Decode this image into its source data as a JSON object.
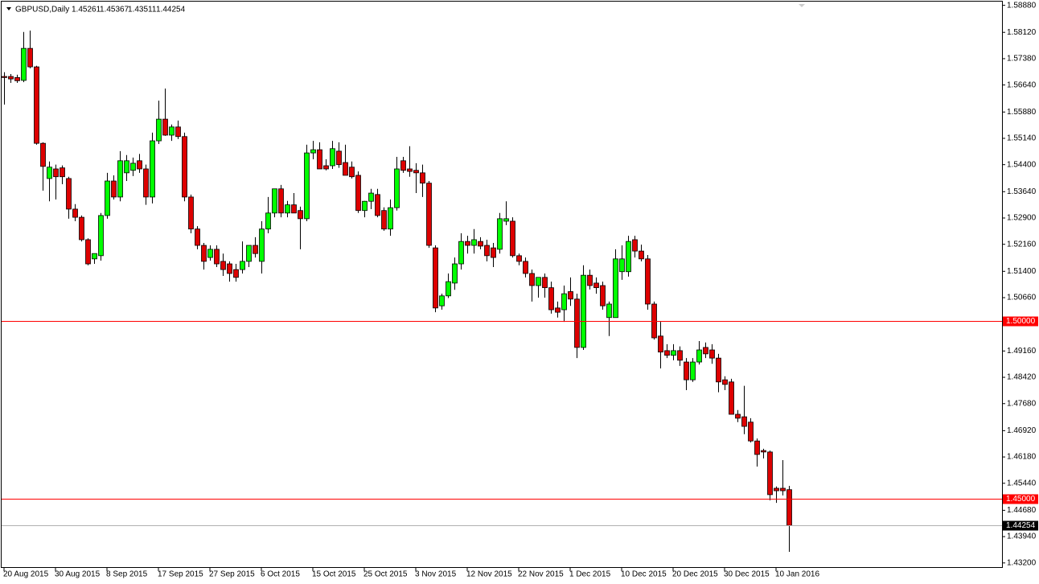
{
  "chart_data": {
    "type": "candlestick",
    "title": "GBPUSD,Daily",
    "categories": [
      "20 Aug 2015",
      null,
      null,
      null,
      null,
      null,
      null,
      null,
      "30 Aug 2015",
      null,
      null,
      null,
      null,
      null,
      null,
      null,
      "8 Sep 2015",
      null,
      null,
      null,
      null,
      null,
      null,
      null,
      "17 Sep 2015",
      null,
      null,
      null,
      null,
      null,
      null,
      null,
      "27 Sep 2015",
      null,
      null,
      null,
      null,
      null,
      null,
      null,
      "6 Oct 2015",
      null,
      null,
      null,
      null,
      null,
      null,
      null,
      "15 Oct 2015",
      null,
      null,
      null,
      null,
      null,
      null,
      null,
      "25 Oct 2015",
      null,
      null,
      null,
      null,
      null,
      null,
      null,
      "3 Nov 2015",
      null,
      null,
      null,
      null,
      null,
      null,
      null,
      "12 Nov 2015",
      null,
      null,
      null,
      null,
      null,
      null,
      null,
      "22 Nov 2015",
      null,
      null,
      null,
      null,
      null,
      null,
      null,
      "1 Dec 2015",
      null,
      null,
      null,
      null,
      null,
      null,
      null,
      "10 Dec 2015",
      null,
      null,
      null,
      null,
      null,
      null,
      null,
      "20 Dec 2015",
      null,
      null,
      null,
      null,
      null,
      null,
      null,
      "30 Dec 2015",
      null,
      null,
      null,
      null,
      null,
      null,
      null,
      "10 Jan 2016",
      null,
      null
    ],
    "open": [
      1.5688,
      1.5688,
      1.5685,
      1.5677,
      1.5767,
      1.5715,
      1.55,
      1.5401,
      1.5428,
      1.5431,
      1.5401,
      1.5315,
      1.5292,
      1.5229,
      1.5175,
      1.5184,
      1.5297,
      1.5394,
      1.5349,
      1.5417,
      1.5424,
      1.5451,
      1.5428,
      1.5349,
      1.5507,
      1.5568,
      1.5523,
      1.5546,
      1.5519,
      1.5349,
      1.5259,
      1.5213,
      1.5179,
      1.5202,
      1.5168,
      1.5161,
      1.5145,
      1.5145,
      1.5168,
      1.5213,
      1.5168,
      1.5259,
      1.5304,
      1.5372,
      1.5304,
      1.5327,
      1.5311,
      1.5288,
      1.5473,
      1.5482,
      1.5437,
      1.5437,
      1.5478,
      1.5446,
      1.5433,
      1.541,
      1.5311,
      1.5337,
      1.5356,
      1.5311,
      1.5259,
      1.5319,
      1.5451,
      1.5428,
      1.5424,
      1.5417,
      1.5388,
      1.5206,
      1.5043,
      1.5071,
      1.5107,
      1.5161,
      1.5224,
      1.5213,
      1.5224,
      1.5213,
      1.5206,
      1.5202,
      1.5281,
      1.5281,
      1.5184,
      1.5168,
      1.5134,
      1.51,
      1.5123,
      1.5094,
      1.5037,
      1.5032,
      1.5083,
      1.5062,
      1.4926,
      1.5129,
      1.5107,
      1.51,
      1.501,
      1.501,
      1.5139,
      1.5139,
      1.5229,
      1.5197,
      1.5175,
      1.5048,
      1.4958,
      1.4917,
      1.4904,
      1.4917,
      1.4885,
      1.4835,
      1.4885,
      1.4926,
      1.4919,
      1.4896,
      1.4835,
      1.4829,
      1.4738,
      1.4731,
      1.4716,
      1.4663,
      1.4636,
      1.4632,
      1.453,
      1.453,
      1.45261
    ],
    "high": [
      1.57,
      1.5695,
      1.5693,
      1.5813,
      1.5817,
      1.5718,
      1.5503,
      1.5449,
      1.544,
      1.5438,
      1.5406,
      1.5329,
      1.5297,
      1.5233,
      1.5186,
      1.5304,
      1.5417,
      1.541,
      1.5478,
      1.5467,
      1.546,
      1.547,
      1.544,
      1.553,
      1.562,
      1.5654,
      1.5553,
      1.5564,
      1.553,
      1.5356,
      1.5267,
      1.522,
      1.5213,
      1.5213,
      1.519,
      1.5168,
      1.5161,
      1.5224,
      1.5213,
      1.5236,
      1.5281,
      1.5349,
      1.5372,
      1.5383,
      1.5338,
      1.536,
      1.5322,
      1.5496,
      1.5507,
      1.5503,
      1.5455,
      1.5507,
      1.5503,
      1.5496,
      1.5449,
      1.5421,
      1.5338,
      1.5372,
      1.5372,
      1.532,
      1.5342,
      1.5462,
      1.5462,
      1.5492,
      1.5444,
      1.544,
      1.5394,
      1.5213,
      1.5077,
      1.5134,
      1.5179,
      1.5247,
      1.524,
      1.5259,
      1.5236,
      1.5229,
      1.522,
      1.5304,
      1.5337,
      1.5292,
      1.519,
      1.5179,
      1.5145,
      1.5123,
      1.5134,
      1.5111,
      1.5055,
      1.51,
      1.5123,
      1.5077,
      1.5157,
      1.5145,
      1.5123,
      1.5111,
      1.5055,
      1.5202,
      1.5213,
      1.524,
      1.524,
      1.5215,
      1.5186,
      1.5055,
      1.4998,
      1.4935,
      1.4935,
      1.4929,
      1.4896,
      1.4896,
      1.4944,
      1.494,
      1.4935,
      1.4908,
      1.4845,
      1.4838,
      1.475,
      1.4818,
      1.4727,
      1.467,
      1.4641,
      1.4636,
      1.4535,
      1.4609,
      1.45367
    ],
    "low": [
      1.5609,
      1.567,
      1.567,
      1.5672,
      1.5711,
      1.5496,
      1.5367,
      1.5337,
      1.5342,
      1.5385,
      1.5288,
      1.5281,
      1.5224,
      1.5157,
      1.5161,
      1.517,
      1.5288,
      1.5342,
      1.5337,
      1.5394,
      1.5408,
      1.5417,
      1.5327,
      1.5331,
      1.5498,
      1.5521,
      1.5507,
      1.5512,
      1.5337,
      1.5247,
      1.5202,
      1.5145,
      1.517,
      1.5152,
      1.5127,
      1.5111,
      1.5111,
      1.5134,
      1.5152,
      1.5179,
      1.5134,
      1.5247,
      1.5292,
      1.5292,
      1.5292,
      1.5304,
      1.5202,
      1.5281,
      1.5455,
      1.5428,
      1.5424,
      1.5428,
      1.5431,
      1.541,
      1.5401,
      1.5304,
      1.5292,
      1.5315,
      1.5292,
      1.5254,
      1.524,
      1.5311,
      1.5417,
      1.5406,
      1.536,
      1.5349,
      1.5206,
      1.5025,
      1.5032,
      1.5065,
      1.5088,
      1.5145,
      1.519,
      1.519,
      1.5202,
      1.5168,
      1.5152,
      1.519,
      1.527,
      1.5179,
      1.5157,
      1.5123,
      1.5055,
      1.5066,
      1.5066,
      1.5021,
      1.501,
      1.4998,
      1.5043,
      1.4896,
      1.4919,
      1.5089,
      1.5077,
      1.5032,
      1.4958,
      1.501,
      1.5116,
      1.5125,
      1.5179,
      1.5168,
      1.5032,
      1.4948,
      1.4867,
      1.4896,
      1.489,
      1.4874,
      1.4806,
      1.4829,
      1.4878,
      1.4896,
      1.488,
      1.48,
      1.4806,
      1.4738,
      1.4716,
      1.4682,
      1.4659,
      1.4591,
      1.4614,
      1.4496,
      1.4489,
      1.451,
      1.43511
    ],
    "close": [
      1.5685,
      1.5681,
      1.5676,
      1.5767,
      1.5715,
      1.55,
      1.5435,
      1.5433,
      1.5406,
      1.5406,
      1.5315,
      1.5292,
      1.5229,
      1.5161,
      1.519,
      1.5297,
      1.5394,
      1.5349,
      1.5451,
      1.5451,
      1.5444,
      1.5428,
      1.5349,
      1.5507,
      1.5568,
      1.5523,
      1.5546,
      1.5519,
      1.5349,
      1.5259,
      1.5213,
      1.5168,
      1.5202,
      1.5161,
      1.5145,
      1.5134,
      1.5123,
      1.5168,
      1.5213,
      1.519,
      1.5259,
      1.5304,
      1.5372,
      1.5304,
      1.5327,
      1.5304,
      1.5288,
      1.5473,
      1.5482,
      1.5428,
      1.5428,
      1.5485,
      1.544,
      1.541,
      1.5406,
      1.5311,
      1.5337,
      1.536,
      1.5297,
      1.5259,
      1.5319,
      1.5428,
      1.5424,
      1.5421,
      1.5417,
      1.5388,
      1.5213,
      1.5037,
      1.5071,
      1.5111,
      1.5161,
      1.5224,
      1.5213,
      1.5229,
      1.5211,
      1.5184,
      1.5179,
      1.5288,
      1.5288,
      1.5184,
      1.5168,
      1.5134,
      1.51,
      1.5123,
      1.5094,
      1.5032,
      1.5025,
      1.5077,
      1.5062,
      1.4926,
      1.5129,
      1.51,
      1.5094,
      1.5043,
      1.5048,
      1.5175,
      1.5175,
      1.5224,
      1.5197,
      1.5175,
      1.5048,
      1.4953,
      1.4913,
      1.4904,
      1.4917,
      1.489,
      1.4835,
      1.4885,
      1.4919,
      1.4908,
      1.4896,
      1.4829,
      1.4822,
      1.4738,
      1.4727,
      1.4704,
      1.4663,
      1.4625,
      1.4632,
      1.4512,
      1.4523,
      1.4523,
      1.44254
    ],
    "up_color": "#00ff00",
    "down_color": "#dd0000",
    "ylim": [
      1.4306,
      1.5903
    ],
    "yticks": [
      {
        "value": 1.5888,
        "label": "1.58880"
      },
      {
        "value": 1.5812,
        "label": "1.58120"
      },
      {
        "value": 1.5738,
        "label": "1.57380"
      },
      {
        "value": 1.5664,
        "label": "1.56640"
      },
      {
        "value": 1.5588,
        "label": "1.55880"
      },
      {
        "value": 1.5514,
        "label": "1.55140"
      },
      {
        "value": 1.544,
        "label": "1.54400"
      },
      {
        "value": 1.5364,
        "label": "1.53640"
      },
      {
        "value": 1.529,
        "label": "1.52900"
      },
      {
        "value": 1.5216,
        "label": "1.52160"
      },
      {
        "value": 1.514,
        "label": "1.51400"
      },
      {
        "value": 1.5066,
        "label": "1.50660"
      },
      {
        "value": 1.4992,
        "label": "1.49920"
      },
      {
        "value": 1.4916,
        "label": "1.49160"
      },
      {
        "value": 1.4842,
        "label": "1.48420"
      },
      {
        "value": 1.4768,
        "label": "1.47680"
      },
      {
        "value": 1.4692,
        "label": "1.46920"
      },
      {
        "value": 1.4618,
        "label": "1.46180"
      },
      {
        "value": 1.4544,
        "label": "1.45440"
      },
      {
        "value": 1.4468,
        "label": "1.44680"
      },
      {
        "value": 1.4394,
        "label": "1.43940"
      },
      {
        "value": 1.432,
        "label": "1.43200"
      }
    ],
    "hlines": [
      {
        "value": 1.5,
        "label": "1.50000",
        "color": "#ff0000"
      },
      {
        "value": 1.45,
        "label": "1.45000",
        "color": "#ff0000"
      }
    ],
    "current_line_color": "#b0b0b0"
  }
}
